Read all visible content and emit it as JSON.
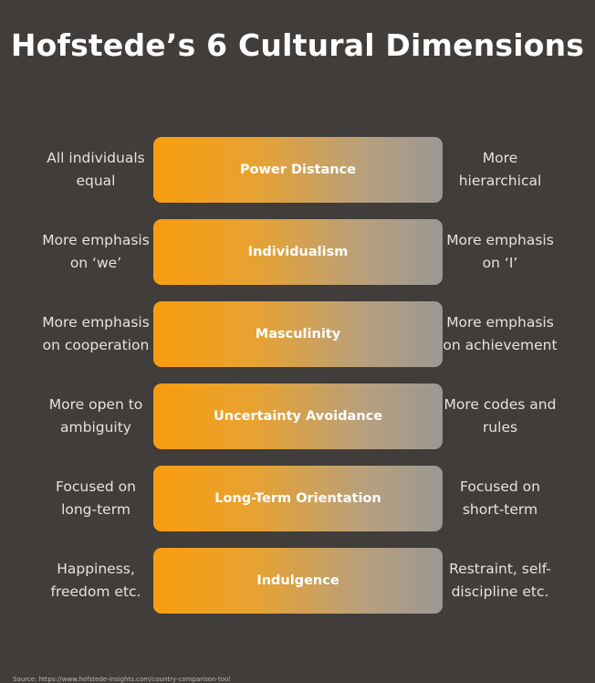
{
  "title": "Hofstede’s 6 Cultural Dimensions",
  "dimensions": [
    {
      "name": "Power Distance",
      "left": "All individuals\nequal",
      "right": "More\nhierarchical"
    },
    {
      "name": "Individualism",
      "left": "More emphasis\non ‘we’",
      "right": "More emphasis\non ‘I’"
    },
    {
      "name": "Masculinity",
      "left": "More emphasis\non cooperation",
      "right": "More emphasis\non achievement"
    },
    {
      "name": "Uncertainty Avoidance",
      "left": "More open to\nambiguity",
      "right": "More codes and\nrules"
    },
    {
      "name": "Long-Term Orientation",
      "left": "Focused on\nlong-term",
      "right": "Focused on\nshort-term"
    },
    {
      "name": "Indulgence",
      "left": "Happiness,\nfreedom etc.",
      "right": "Restraint, self-\ndiscipline etc."
    }
  ],
  "source": "Source: https://www.hofstede-insights.com/country-comparison-tool",
  "colors": {
    "background": "#413d3b",
    "bar_start": "#f99d0e",
    "bar_end": "#9b9894",
    "text": "#e6e2df"
  }
}
